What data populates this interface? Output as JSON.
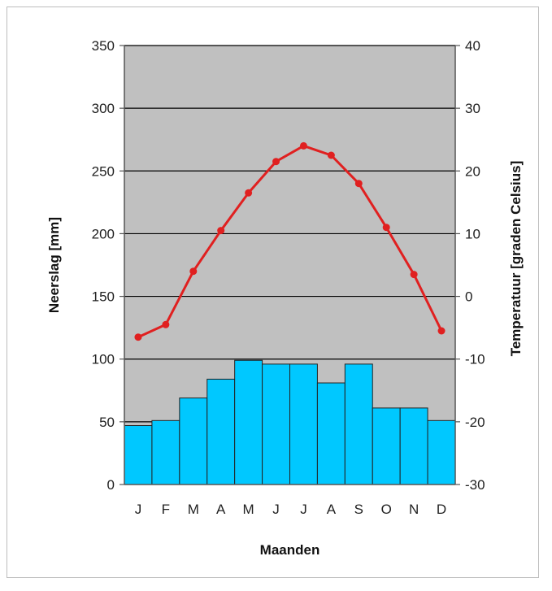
{
  "chart_data": {
    "type": "bar+line",
    "categories": [
      "J",
      "F",
      "M",
      "A",
      "M",
      "J",
      "J",
      "A",
      "S",
      "O",
      "N",
      "D"
    ],
    "series": [
      {
        "type": "bar",
        "axis": "left",
        "values": [
          47,
          51,
          69,
          84,
          99,
          96,
          96,
          81,
          96,
          61,
          61,
          51
        ]
      },
      {
        "type": "line",
        "axis": "right",
        "values": [
          -6.5,
          -4.5,
          4,
          10.5,
          16.5,
          21.5,
          24,
          22.5,
          18,
          11,
          3.5,
          -5.5
        ]
      }
    ],
    "xlabel": "Maanden",
    "ylabel": "Neerslag [mm]",
    "y2label": "Temperatuur [graden Celsius]",
    "ylim": [
      0,
      350
    ],
    "yticks": [
      0,
      50,
      100,
      150,
      200,
      250,
      300,
      350
    ],
    "y2lim": [
      -30,
      40
    ],
    "y2ticks": [
      -30,
      -20,
      -10,
      0,
      10,
      20,
      30,
      40
    ],
    "grid": true,
    "colors": {
      "plot_background": "#c0c0c0",
      "bars": "#00c8ff",
      "bar_edge": "#222222",
      "line": "#e02020",
      "gridlines": "#000000"
    }
  }
}
